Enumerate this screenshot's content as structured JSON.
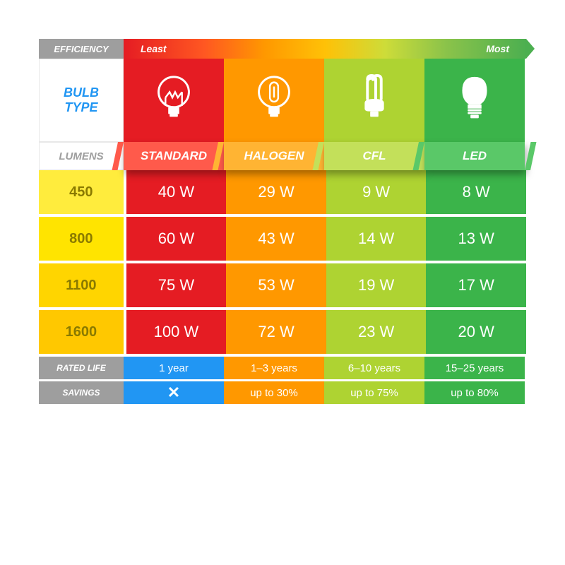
{
  "efficiency": {
    "label": "EFFICIENCY",
    "least": "Least",
    "most": "Most"
  },
  "bulbtype": {
    "line1": "BULB",
    "line2": "TYPE"
  },
  "columns": [
    {
      "name": "STANDARD",
      "main_color": "#e51c23",
      "ribbon_color": "#ff5a4b",
      "icon": "incandescent"
    },
    {
      "name": "HALOGEN",
      "main_color": "#ff9800",
      "ribbon_color": "#ffb433",
      "icon": "halogen"
    },
    {
      "name": "CFL",
      "main_color": "#aed332",
      "ribbon_color": "#c3e05a",
      "icon": "cfl"
    },
    {
      "name": "LED",
      "main_color": "#3bb44a",
      "ribbon_color": "#5ac868",
      "icon": "led"
    }
  ],
  "lumens_header": "LUMENS",
  "lumen_colors": [
    "#ffec3d",
    "#ffe400",
    "#ffd500",
    "#ffc800"
  ],
  "rows": [
    {
      "lumens": "450",
      "watts": [
        "40 W",
        "29 W",
        "9 W",
        "8 W"
      ]
    },
    {
      "lumens": "800",
      "watts": [
        "60 W",
        "43 W",
        "14 W",
        "13 W"
      ]
    },
    {
      "lumens": "1100",
      "watts": [
        "75 W",
        "53 W",
        "19 W",
        "17 W"
      ]
    },
    {
      "lumens": "1600",
      "watts": [
        "100 W",
        "72 W",
        "23 W",
        "20 W"
      ]
    }
  ],
  "rated_life": {
    "label": "RATED LIFE",
    "values": [
      "1 year",
      "1–3 years",
      "6–10 years",
      "15–25 years"
    ]
  },
  "savings": {
    "label": "SAVINGS",
    "values": [
      "✕",
      "up to 30%",
      "up to 75%",
      "up to 80%"
    ]
  },
  "background": "#ffffff",
  "font_sizes": {
    "ribbon": 17,
    "watt": 22,
    "lumen": 20,
    "meta": 15
  }
}
